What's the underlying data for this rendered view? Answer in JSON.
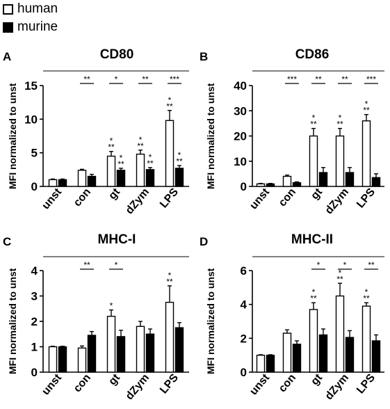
{
  "legend": {
    "entries": [
      {
        "label": "human",
        "fill": "#ffffff"
      },
      {
        "label": "murine",
        "fill": "#000000"
      }
    ]
  },
  "chart_data": [
    {
      "type": "bar",
      "letter": "A",
      "title": "CD80",
      "ylabel": "MFI normalized to unst",
      "categories": [
        "unst",
        "con",
        "gt",
        "dZym",
        "LPS"
      ],
      "ylim": [
        0,
        15
      ],
      "yticks": [
        0,
        5,
        10,
        15
      ],
      "series": [
        {
          "name": "human",
          "fill": "#ffffff",
          "values": [
            1.0,
            2.4,
            4.5,
            4.8,
            9.8
          ],
          "errors": [
            0.1,
            0.15,
            0.7,
            0.6,
            1.5
          ],
          "stars": [
            "",
            "",
            "**",
            "**",
            "**"
          ]
        },
        {
          "name": "murine",
          "fill": "#000000",
          "values": [
            1.0,
            1.5,
            2.4,
            2.5,
            2.7
          ],
          "errors": [
            0.1,
            0.3,
            0.3,
            0.3,
            0.4
          ],
          "stars": [
            "",
            "",
            "**",
            "**",
            "**"
          ]
        }
      ],
      "comparisons": [
        {
          "category": "con",
          "label": "**"
        },
        {
          "category": "gt",
          "label": "*"
        },
        {
          "category": "dZym",
          "label": "**"
        },
        {
          "category": "LPS",
          "label": "***"
        }
      ],
      "grid": false
    },
    {
      "type": "bar",
      "letter": "B",
      "title": "CD86",
      "ylabel": "MFI normalized to unst",
      "categories": [
        "unst",
        "con",
        "gt",
        "dZym",
        "LPS"
      ],
      "ylim": [
        0,
        40
      ],
      "yticks": [
        0,
        10,
        20,
        30,
        40
      ],
      "series": [
        {
          "name": "human",
          "fill": "#ffffff",
          "values": [
            1.0,
            4.0,
            20.0,
            20.0,
            26.0
          ],
          "errors": [
            0.2,
            0.5,
            3.0,
            3.0,
            2.5
          ],
          "stars": [
            "",
            "",
            "**",
            "**",
            "**"
          ]
        },
        {
          "name": "murine",
          "fill": "#000000",
          "values": [
            1.0,
            1.5,
            5.5,
            5.5,
            3.5
          ],
          "errors": [
            0.2,
            0.3,
            2.0,
            2.0,
            1.5
          ],
          "stars": [
            "",
            "",
            "",
            "",
            ""
          ]
        }
      ],
      "comparisons": [
        {
          "category": "con",
          "label": "***"
        },
        {
          "category": "gt",
          "label": "**"
        },
        {
          "category": "dZym",
          "label": "**"
        },
        {
          "category": "LPS",
          "label": "***"
        }
      ],
      "grid": false
    },
    {
      "type": "bar",
      "letter": "C",
      "title": "MHC-I",
      "ylabel": "MFI normalized to unst",
      "categories": [
        "unst",
        "con",
        "gt",
        "dZym",
        "LPS"
      ],
      "ylim": [
        0,
        4
      ],
      "yticks": [
        0,
        1,
        2,
        3,
        4
      ],
      "series": [
        {
          "name": "human",
          "fill": "#ffffff",
          "values": [
            1.0,
            0.95,
            2.2,
            1.8,
            2.75
          ],
          "errors": [
            0.02,
            0.08,
            0.25,
            0.2,
            0.65
          ],
          "stars": [
            "",
            "",
            "*",
            "",
            "**"
          ]
        },
        {
          "name": "murine",
          "fill": "#000000",
          "values": [
            1.0,
            1.45,
            1.4,
            1.5,
            1.75
          ],
          "errors": [
            0.02,
            0.15,
            0.25,
            0.2,
            0.2
          ],
          "stars": [
            "",
            "",
            "",
            "",
            ""
          ]
        }
      ],
      "comparisons": [
        {
          "category": "con",
          "label": "**"
        },
        {
          "category": "gt",
          "label": "*"
        }
      ],
      "grid": false
    },
    {
      "type": "bar",
      "letter": "D",
      "title": "MHC-II",
      "ylabel": "MFI normalized to unst",
      "categories": [
        "unst",
        "con",
        "gt",
        "dZym",
        "LPS"
      ],
      "ylim": [
        0,
        6
      ],
      "yticks": [
        0,
        2,
        4,
        6
      ],
      "series": [
        {
          "name": "human",
          "fill": "#ffffff",
          "values": [
            1.0,
            2.3,
            3.7,
            4.5,
            3.9
          ],
          "errors": [
            0.03,
            0.2,
            0.4,
            0.75,
            0.2
          ],
          "stars": [
            "",
            "",
            "**",
            "**",
            "**"
          ]
        },
        {
          "name": "murine",
          "fill": "#000000",
          "values": [
            1.0,
            1.65,
            2.2,
            2.05,
            1.85
          ],
          "errors": [
            0.03,
            0.2,
            0.35,
            0.4,
            0.35
          ],
          "stars": [
            "",
            "",
            "",
            "",
            ""
          ]
        }
      ],
      "comparisons": [
        {
          "category": "gt",
          "label": "*"
        },
        {
          "category": "dZym",
          "label": "*"
        },
        {
          "category": "LPS",
          "label": "**"
        }
      ],
      "grid": false
    }
  ]
}
